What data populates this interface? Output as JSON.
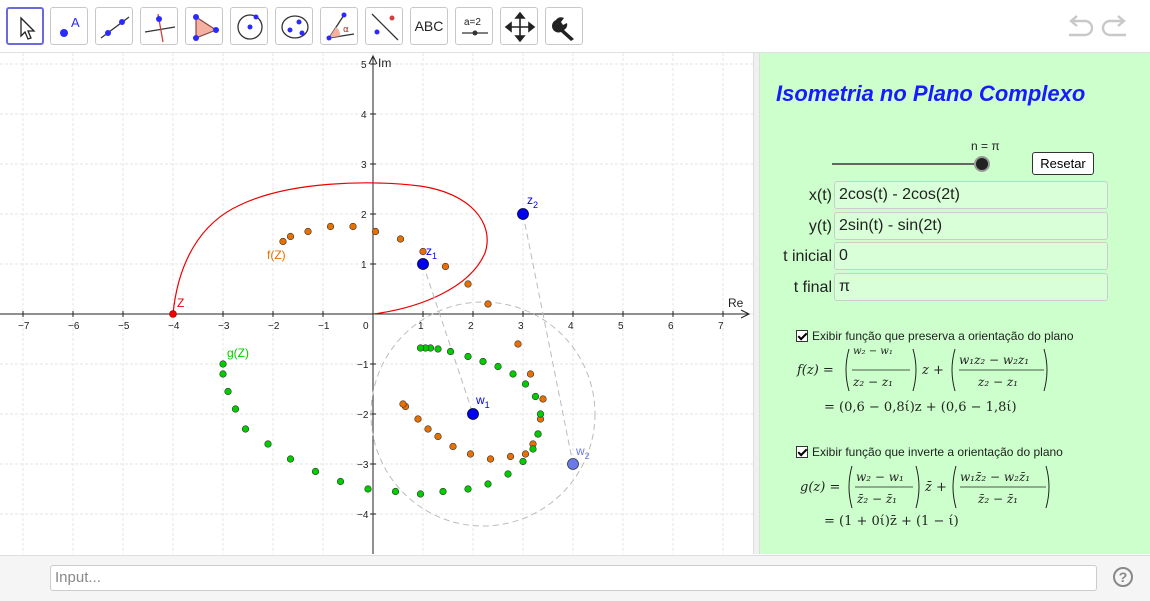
{
  "toolbar": {
    "tools": [
      {
        "name": "move-tool",
        "icon": "arrow-cursor-icon"
      },
      {
        "name": "point-tool",
        "icon": "point-icon",
        "label": "A"
      },
      {
        "name": "line-tool",
        "icon": "line-icon"
      },
      {
        "name": "perpendicular-tool",
        "icon": "perpendicular-icon"
      },
      {
        "name": "polygon-tool",
        "icon": "polygon-icon"
      },
      {
        "name": "circle-tool",
        "icon": "circle-icon"
      },
      {
        "name": "conic-tool",
        "icon": "ellipse-icon"
      },
      {
        "name": "angle-tool",
        "icon": "angle-icon"
      },
      {
        "name": "reflect-tool",
        "icon": "reflect-icon"
      },
      {
        "name": "text-tool",
        "icon": "text-icon",
        "label": "ABC"
      },
      {
        "name": "slider-tool",
        "icon": "slider-icon",
        "label": "a=2"
      },
      {
        "name": "move-view-tool",
        "icon": "move-arrows-icon"
      },
      {
        "name": "settings-tool",
        "icon": "wrench-icon"
      }
    ],
    "undo_icon": "undo-icon",
    "redo_icon": "redo-icon"
  },
  "graph": {
    "x_axis_label": "Re",
    "y_axis_label": "Im",
    "x_ticks": [
      "−7",
      "−6",
      "−5",
      "−4",
      "−3",
      "−2",
      "−1",
      "0",
      "1",
      "2",
      "3",
      "4",
      "5",
      "6",
      "7"
    ],
    "y_ticks": [
      "5",
      "4",
      "3",
      "2",
      "1",
      "−1",
      "−2",
      "−3",
      "−4"
    ],
    "labels": {
      "f": "f(Z)",
      "g": "g(Z)",
      "Z": "Z",
      "z1": "z",
      "z1_sub": "1",
      "z2": "z",
      "z2_sub": "2",
      "w1": "w",
      "w1_sub": "1",
      "w2": "w",
      "w2_sub": "2"
    },
    "colors": {
      "orange": "#e87000",
      "green": "#00cc00",
      "red": "#ee0000",
      "blue": "#0000ee",
      "lightblue": "#6a7ae8"
    }
  },
  "panel": {
    "title": "Isometria no Plano Complexo",
    "slider_label": "n = π",
    "reset_label": "Resetar",
    "fields": [
      {
        "label": "x(t)",
        "value": "2cos(t) - 2cos(2t)"
      },
      {
        "label": "y(t)",
        "value": "2sin(t) - sin(2t)"
      },
      {
        "label": "t inicial",
        "value": "0"
      },
      {
        "label": "t final",
        "value": "π"
      }
    ],
    "check1": "Exibir função que preserva a orientação do plano",
    "check2": "Exibir função que inverte a orientação do plano",
    "f_line1_lhs": "f(z) =",
    "f_frac1_num": "w₂ − w₁",
    "f_frac1_den": "z₂ − z₁",
    "f_mid": "z +",
    "f_frac2_num": "w₁z₂ − w₂z₁",
    "f_frac2_den": "z₂ − z₁",
    "f_line2": "= (0,6 − 0,8ί)z + (0,6 − 1,8ί)",
    "g_line1_lhs": "g(z) =",
    "g_frac1_num": "w₂ − w₁",
    "g_frac1_den": "z̄₂ − z̄₁",
    "g_mid": "z̄ +",
    "g_frac2_num": "w₁z̄₂ − w₂z̄₁",
    "g_frac2_den": "z̄₂ − z̄₁",
    "g_line2": "= (1 + 0ί)z̄ + (1 − ί)"
  },
  "input_placeholder": "Input...",
  "help_icon": "help-icon",
  "help_label": "?"
}
